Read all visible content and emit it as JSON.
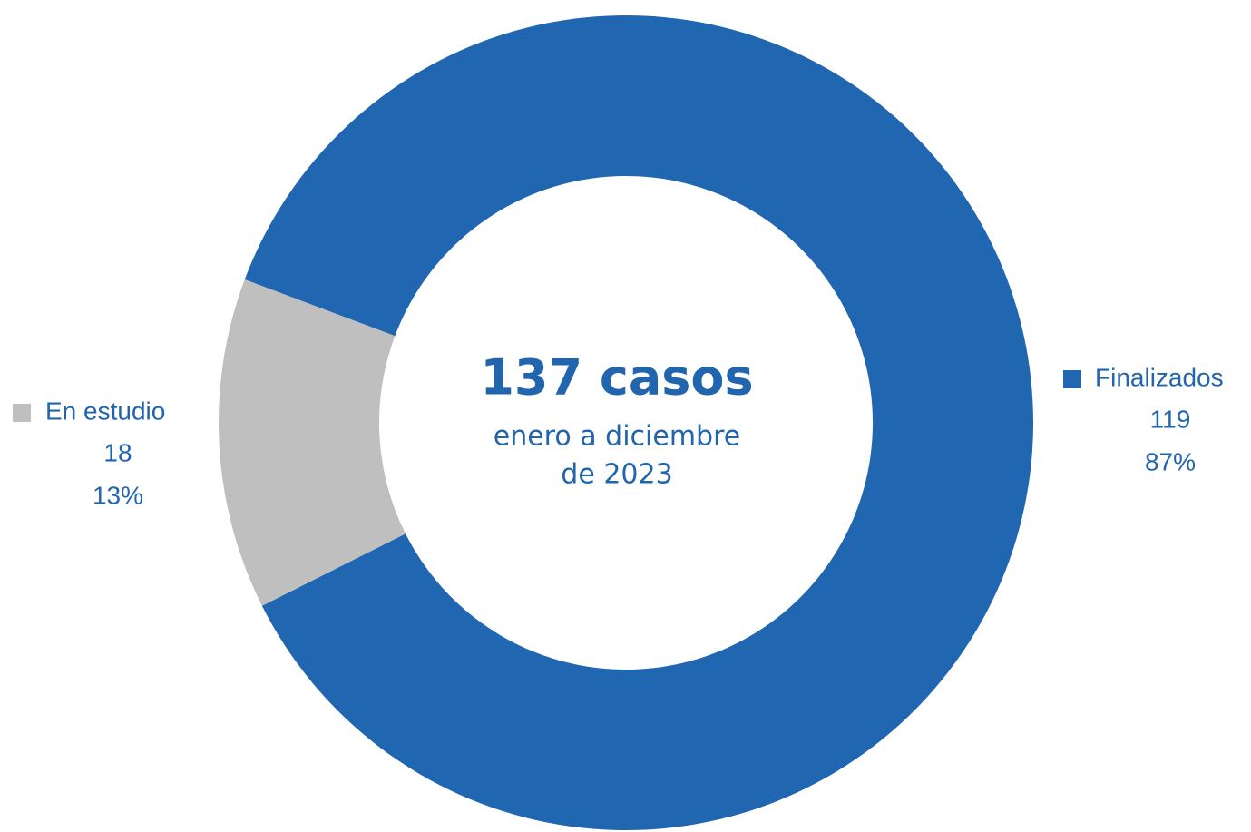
{
  "chart_data": {
    "type": "donut",
    "categories": [
      "Finalizados",
      "En estudio"
    ],
    "values": [
      119,
      18
    ],
    "percent_labels": [
      "87%",
      "13%"
    ],
    "colors": [
      "#2166b0",
      "#bfbfbf"
    ],
    "center_title": "137 casos",
    "center_subtitle": [
      "enero a diciembre",
      "de 2023"
    ]
  }
}
